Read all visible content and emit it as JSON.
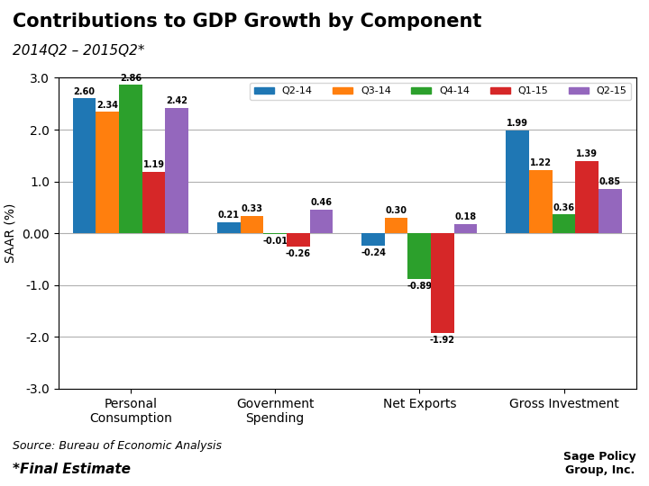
{
  "chart_data": {
    "type": "bar",
    "title": "Contributions to GDP Growth by Component",
    "subtitle": "2014Q2 – 2015Q2*",
    "categories": [
      "Personal\nConsumption",
      "Government\nSpending",
      "Net Exports",
      "Gross Investment"
    ],
    "series": [
      {
        "name": "Q2-14",
        "values": [
          2.6,
          0.21,
          -0.24,
          1.99
        ],
        "value_labels": [
          "2.60",
          "0.21",
          "-0.24",
          "1.99"
        ]
      },
      {
        "name": "Q3-14",
        "values": [
          2.34,
          0.33,
          0.3,
          1.22
        ],
        "value_labels": [
          "2.34",
          "0.33",
          "0.30",
          "1.22"
        ]
      },
      {
        "name": "Q4-14",
        "values": [
          2.86,
          -0.01,
          -0.89,
          0.36
        ],
        "value_labels": [
          "2.86",
          "-0.01",
          "-0.89",
          "0.36"
        ]
      },
      {
        "name": "Q1-15",
        "values": [
          1.19,
          -0.26,
          -1.92,
          1.39
        ],
        "value_labels": [
          "1.19",
          "-0.26",
          "-1.92",
          "1.39"
        ]
      },
      {
        "name": "Q2-15",
        "values": [
          2.42,
          0.46,
          0.18,
          0.85
        ],
        "value_labels": [
          "2.42",
          "0.46",
          "0.18",
          "0.85"
        ]
      }
    ],
    "ylabel": "SAAR (%)",
    "ylim": [
      -3.0,
      3.0
    ],
    "yticks": [
      {
        "value": -3.0,
        "label": "-3.0"
      },
      {
        "value": -2.0,
        "label": "-2.0"
      },
      {
        "value": -1.0,
        "label": "-1.0"
      },
      {
        "value": 0.0,
        "label": "0.00"
      },
      {
        "value": 1.0,
        "label": "1.0"
      },
      {
        "value": 2.0,
        "label": "2.0"
      },
      {
        "value": 3.0,
        "label": "3.0"
      }
    ],
    "grid": true,
    "legend": "upper right",
    "data_labels": true,
    "annotations": [
      "Source: Bureau of Economic Analysis",
      "*Final Estimate",
      "Sage Policy\nGroup, Inc."
    ]
  }
}
